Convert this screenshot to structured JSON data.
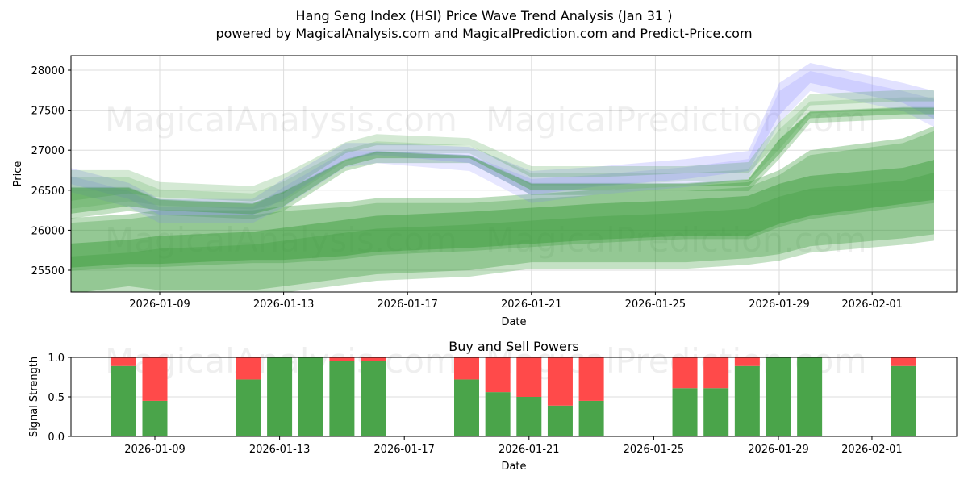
{
  "header": {
    "title": "Hang Seng Index (HSI) Price Wave Trend Analysis (Jan 31 )",
    "subtitle": "powered by MagicalAnalysis.com and MagicalPrediction.com and Predict-Price.com"
  },
  "watermarks": [
    "MagicalAnalysis.com",
    "MagicalPrediction.com"
  ],
  "colors": {
    "buy": "#4aa44a",
    "sell": "#ff4a4a",
    "band_green": "#3a9c3a",
    "band_blue": "#7b7bff",
    "grid": "#dddddd"
  },
  "chart_data": [
    {
      "type": "area",
      "title": "Hang Seng Index (HSI) Price Wave Trend Analysis (Jan 31 )",
      "xlabel": "Date",
      "ylabel": "Price",
      "ylim": [
        25200,
        28200
      ],
      "yticks": [
        25500,
        26000,
        26500,
        27000,
        27500,
        28000
      ],
      "xticks": [
        "2026-01-09",
        "2026-01-13",
        "2026-01-17",
        "2026-01-21",
        "2026-01-25",
        "2026-01-29",
        "2026-02-01"
      ],
      "grid": true,
      "x": [
        "2026-01-06",
        "2026-01-08",
        "2026-01-09",
        "2026-01-12",
        "2026-01-13",
        "2026-01-15",
        "2026-01-16",
        "2026-01-19",
        "2026-01-21",
        "2026-01-23",
        "2026-01-26",
        "2026-01-28",
        "2026-01-29",
        "2026-01-30",
        "2026-02-02",
        "2026-02-03"
      ],
      "series": [
        {
          "name": "Historical wave (blue) upper",
          "color": "blue",
          "values": [
            26750,
            26550,
            26350,
            26350,
            26600,
            27050,
            27050,
            27000,
            26700,
            26750,
            26850,
            26950,
            27800,
            28050,
            27800,
            27700
          ]
        },
        {
          "name": "Historical wave (blue) lower",
          "color": "blue",
          "values": [
            26550,
            26350,
            26150,
            26150,
            26350,
            26850,
            26900,
            26800,
            26400,
            26500,
            26600,
            26700,
            27400,
            27800,
            27550,
            27350
          ]
        },
        {
          "name": "Short-term wave (green) upper",
          "color": "green",
          "values": [
            26600,
            26600,
            26450,
            26400,
            26550,
            26950,
            27050,
            27000,
            26650,
            26650,
            26650,
            26700,
            27200,
            27550,
            27600,
            27600
          ]
        },
        {
          "name": "Short-term wave (green) lower",
          "color": "green",
          "values": [
            26200,
            26300,
            26250,
            26200,
            26300,
            26800,
            26900,
            26900,
            26500,
            26500,
            26550,
            26550,
            26950,
            27400,
            27450,
            27450
          ]
        },
        {
          "name": "Mid-term band upper",
          "color": "green",
          "values": [
            26150,
            26200,
            26250,
            26250,
            26300,
            26350,
            26400,
            26400,
            26450,
            26500,
            26550,
            26600,
            26750,
            27000,
            27150,
            27300
          ]
        },
        {
          "name": "Mid-term band center",
          "color": "green",
          "values": [
            25750,
            25800,
            25850,
            25900,
            25950,
            26050,
            26100,
            26150,
            26200,
            26250,
            26300,
            26350,
            26500,
            26600,
            26700,
            26800
          ]
        },
        {
          "name": "Long-term band center",
          "color": "green",
          "values": [
            25550,
            25600,
            25600,
            25650,
            25650,
            25700,
            25750,
            25800,
            25850,
            25900,
            25950,
            25950,
            26100,
            26200,
            26350,
            26400
          ]
        },
        {
          "name": "Long-term band lower",
          "color": "green",
          "values": [
            25200,
            25300,
            25250,
            25250,
            25300,
            25400,
            25450,
            25500,
            25600,
            25600,
            25600,
            25650,
            25700,
            25800,
            25900,
            25950
          ]
        }
      ]
    },
    {
      "type": "bar",
      "title": "Buy and Sell Powers",
      "xlabel": "Date",
      "ylabel": "Signal Strength",
      "ylim": [
        0,
        1.0
      ],
      "yticks": [
        "0.0",
        "0.5",
        "1.0"
      ],
      "xticks": [
        "2026-01-09",
        "2026-01-13",
        "2026-01-17",
        "2026-01-21",
        "2026-01-25",
        "2026-01-29",
        "2026-02-01"
      ],
      "grid": true,
      "stacked": true,
      "categories": [
        "2026-01-08",
        "2026-01-09",
        "2026-01-12",
        "2026-01-13",
        "2026-01-14",
        "2026-01-15",
        "2026-01-16",
        "2026-01-19",
        "2026-01-20",
        "2026-01-21",
        "2026-01-22",
        "2026-01-23",
        "2026-01-26",
        "2026-01-27",
        "2026-01-28",
        "2026-01-29",
        "2026-01-30",
        "2026-02-02"
      ],
      "series": [
        {
          "name": "Buy Power",
          "color": "#4aa44a",
          "values": [
            0.89,
            0.45,
            0.72,
            1.0,
            1.0,
            0.95,
            0.95,
            0.72,
            0.56,
            0.5,
            0.39,
            0.45,
            0.61,
            0.61,
            0.89,
            1.0,
            1.0,
            0.89
          ]
        },
        {
          "name": "Sell Power",
          "color": "#ff4a4a",
          "values": [
            0.11,
            0.55,
            0.28,
            0.0,
            0.0,
            0.05,
            0.05,
            0.28,
            0.44,
            0.5,
            0.61,
            0.55,
            0.39,
            0.39,
            0.11,
            0.0,
            0.0,
            0.11
          ]
        }
      ]
    }
  ]
}
